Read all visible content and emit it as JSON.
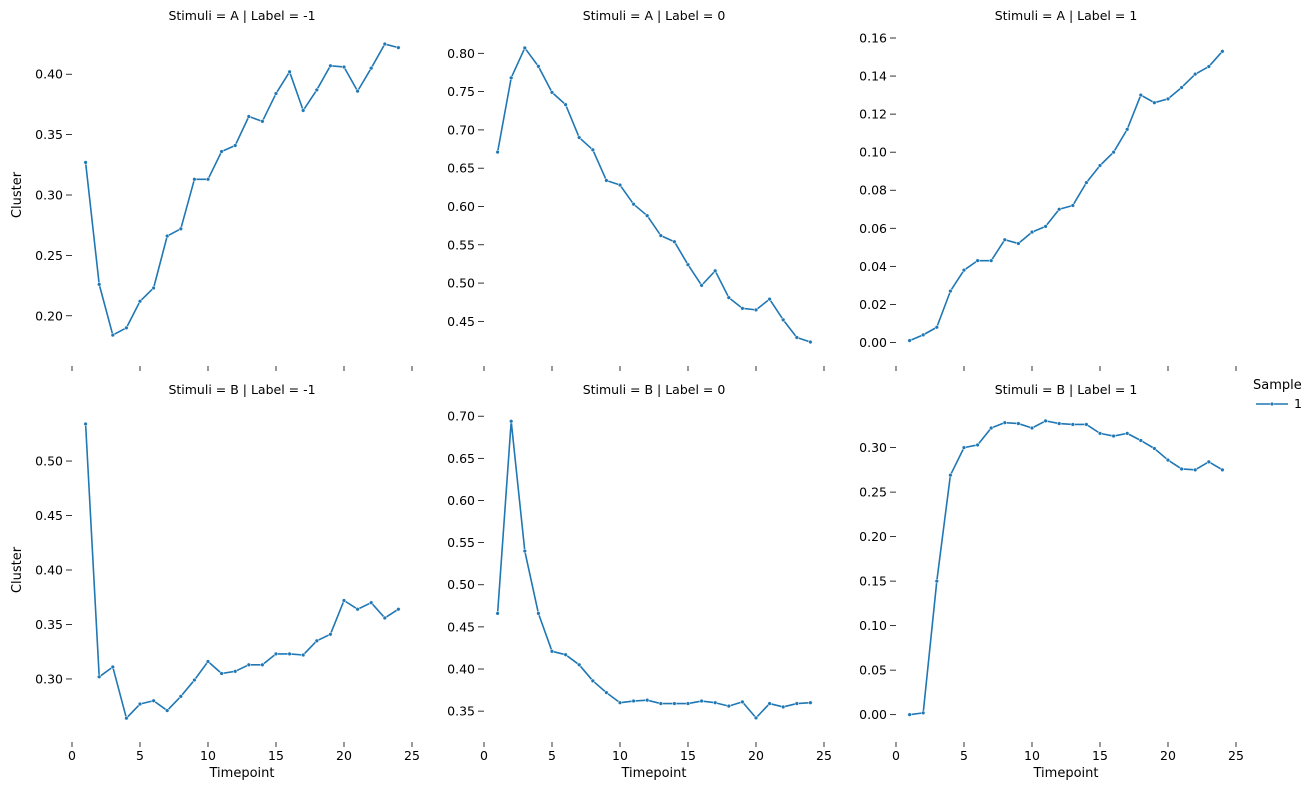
{
  "figure": {
    "series_color": "#1f77b4",
    "legend": {
      "title": "Sample",
      "entries": [
        "1"
      ]
    }
  },
  "chart_data": [
    {
      "type": "line",
      "title": "Stimuli = A | Label = -1",
      "xlabel": "",
      "ylabel": "Cluster",
      "xlim": [
        0,
        25
      ],
      "ylim": [
        0.17,
        0.43
      ],
      "x_ticks_labeled": false,
      "y_ticks": [
        0.2,
        0.25,
        0.3,
        0.35,
        0.4
      ],
      "y_tick_labels": [
        "0.20",
        "0.25",
        "0.30",
        "0.35",
        "0.40"
      ],
      "series": [
        {
          "name": "1",
          "x": [
            1,
            2,
            3,
            4,
            5,
            6,
            7,
            8,
            9,
            10,
            11,
            12,
            13,
            14,
            15,
            16,
            17,
            18,
            19,
            20,
            21,
            22,
            23,
            24
          ],
          "y": [
            0.327,
            0.226,
            0.184,
            0.19,
            0.212,
            0.223,
            0.266,
            0.272,
            0.313,
            0.313,
            0.336,
            0.341,
            0.365,
            0.361,
            0.384,
            0.402,
            0.37,
            0.387,
            0.407,
            0.406,
            0.386,
            0.405,
            0.425,
            0.422
          ]
        }
      ]
    },
    {
      "type": "line",
      "title": "Stimuli = A | Label = 0",
      "xlabel": "",
      "ylabel": "",
      "xlim": [
        0,
        25
      ],
      "ylim": [
        0.41,
        0.82
      ],
      "x_ticks_labeled": false,
      "y_ticks": [
        0.45,
        0.5,
        0.55,
        0.6,
        0.65,
        0.7,
        0.75,
        0.8
      ],
      "y_tick_labels": [
        "0.45",
        "0.50",
        "0.55",
        "0.60",
        "0.65",
        "0.70",
        "0.75",
        "0.80"
      ],
      "series": [
        {
          "name": "1",
          "x": [
            1,
            2,
            3,
            4,
            5,
            6,
            7,
            8,
            9,
            10,
            11,
            12,
            13,
            14,
            15,
            16,
            17,
            18,
            19,
            20,
            21,
            22,
            23,
            24
          ],
          "y": [
            0.671,
            0.768,
            0.807,
            0.783,
            0.749,
            0.733,
            0.69,
            0.674,
            0.634,
            0.628,
            0.603,
            0.588,
            0.562,
            0.554,
            0.524,
            0.497,
            0.516,
            0.481,
            0.467,
            0.465,
            0.479,
            0.452,
            0.429,
            0.423
          ]
        }
      ]
    },
    {
      "type": "line",
      "title": "Stimuli = A | Label = 1",
      "xlabel": "",
      "ylabel": "",
      "xlim": [
        0,
        25
      ],
      "ylim": [
        -0.005,
        0.16
      ],
      "x_ticks_labeled": false,
      "y_ticks": [
        0.0,
        0.02,
        0.04,
        0.06,
        0.08,
        0.1,
        0.12,
        0.14,
        0.16
      ],
      "y_tick_labels": [
        "0.00",
        "0.02",
        "0.04",
        "0.06",
        "0.08",
        "0.10",
        "0.12",
        "0.14",
        "0.16"
      ],
      "series": [
        {
          "name": "1",
          "x": [
            1,
            2,
            3,
            4,
            5,
            6,
            7,
            8,
            9,
            10,
            11,
            12,
            13,
            14,
            15,
            16,
            17,
            18,
            19,
            20,
            21,
            22,
            23,
            24
          ],
          "y": [
            0.001,
            0.004,
            0.008,
            0.027,
            0.038,
            0.043,
            0.043,
            0.054,
            0.052,
            0.058,
            0.061,
            0.07,
            0.072,
            0.084,
            0.093,
            0.1,
            0.112,
            0.13,
            0.126,
            0.128,
            0.134,
            0.141,
            0.145,
            0.153
          ]
        }
      ]
    },
    {
      "type": "line",
      "title": "Stimuli = B | Label = -1",
      "xlabel": "Timepoint",
      "ylabel": "Cluster",
      "xlim": [
        0,
        25
      ],
      "ylim": [
        0.255,
        0.545
      ],
      "x_ticks_labeled": true,
      "x_ticks": [
        0,
        5,
        10,
        15,
        20,
        25
      ],
      "x_tick_labels": [
        "0",
        "5",
        "10",
        "15",
        "20",
        "25"
      ],
      "y_ticks": [
        0.3,
        0.35,
        0.4,
        0.45,
        0.5
      ],
      "y_tick_labels": [
        "0.30",
        "0.35",
        "0.40",
        "0.45",
        "0.50"
      ],
      "series": [
        {
          "name": "1",
          "x": [
            1,
            2,
            3,
            4,
            5,
            6,
            7,
            8,
            9,
            10,
            11,
            12,
            13,
            14,
            15,
            16,
            17,
            18,
            19,
            20,
            21,
            22,
            23,
            24
          ],
          "y": [
            0.534,
            0.302,
            0.311,
            0.264,
            0.277,
            0.28,
            0.271,
            0.284,
            0.299,
            0.316,
            0.305,
            0.307,
            0.313,
            0.313,
            0.323,
            0.323,
            0.322,
            0.335,
            0.341,
            0.372,
            0.364,
            0.37,
            0.356,
            0.364
          ]
        }
      ]
    },
    {
      "type": "line",
      "title": "Stimuli = B | Label = 0",
      "xlabel": "Timepoint",
      "ylabel": "",
      "xlim": [
        0,
        25
      ],
      "ylim": [
        0.33,
        0.705
      ],
      "x_ticks_labeled": true,
      "x_ticks": [
        0,
        5,
        10,
        15,
        20,
        25
      ],
      "x_tick_labels": [
        "0",
        "5",
        "10",
        "15",
        "20",
        "25"
      ],
      "y_ticks": [
        0.35,
        0.4,
        0.45,
        0.5,
        0.55,
        0.6,
        0.65,
        0.7
      ],
      "y_tick_labels": [
        "0.35",
        "0.40",
        "0.45",
        "0.50",
        "0.55",
        "0.60",
        "0.65",
        "0.70"
      ],
      "series": [
        {
          "name": "1",
          "x": [
            1,
            2,
            3,
            4,
            5,
            6,
            7,
            8,
            9,
            10,
            11,
            12,
            13,
            14,
            15,
            16,
            17,
            18,
            19,
            20,
            21,
            22,
            23,
            24
          ],
          "y": [
            0.466,
            0.694,
            0.54,
            0.466,
            0.421,
            0.417,
            0.405,
            0.386,
            0.372,
            0.36,
            0.362,
            0.363,
            0.359,
            0.359,
            0.359,
            0.362,
            0.36,
            0.356,
            0.361,
            0.342,
            0.359,
            0.355,
            0.359,
            0.36
          ]
        }
      ]
    },
    {
      "type": "line",
      "title": "Stimuli = B | Label = 1",
      "xlabel": "Timepoint",
      "ylabel": "",
      "xlim": [
        0,
        25
      ],
      "ylim": [
        -0.015,
        0.34
      ],
      "x_ticks_labeled": true,
      "x_ticks": [
        0,
        5,
        10,
        15,
        20,
        25
      ],
      "x_tick_labels": [
        "0",
        "5",
        "10",
        "15",
        "20",
        "25"
      ],
      "y_ticks": [
        0.0,
        0.05,
        0.1,
        0.15,
        0.2,
        0.25,
        0.3
      ],
      "y_tick_labels": [
        "0.00",
        "0.05",
        "0.10",
        "0.15",
        "0.20",
        "0.25",
        "0.30"
      ],
      "series": [
        {
          "name": "1",
          "x": [
            1,
            2,
            3,
            4,
            5,
            6,
            7,
            8,
            9,
            10,
            11,
            12,
            13,
            14,
            15,
            16,
            17,
            18,
            19,
            20,
            21,
            22,
            23,
            24
          ],
          "y": [
            0.0,
            0.002,
            0.15,
            0.269,
            0.3,
            0.303,
            0.322,
            0.328,
            0.327,
            0.322,
            0.33,
            0.327,
            0.326,
            0.326,
            0.316,
            0.313,
            0.316,
            0.308,
            0.299,
            0.286,
            0.276,
            0.275,
            0.284,
            0.275
          ]
        }
      ]
    }
  ]
}
